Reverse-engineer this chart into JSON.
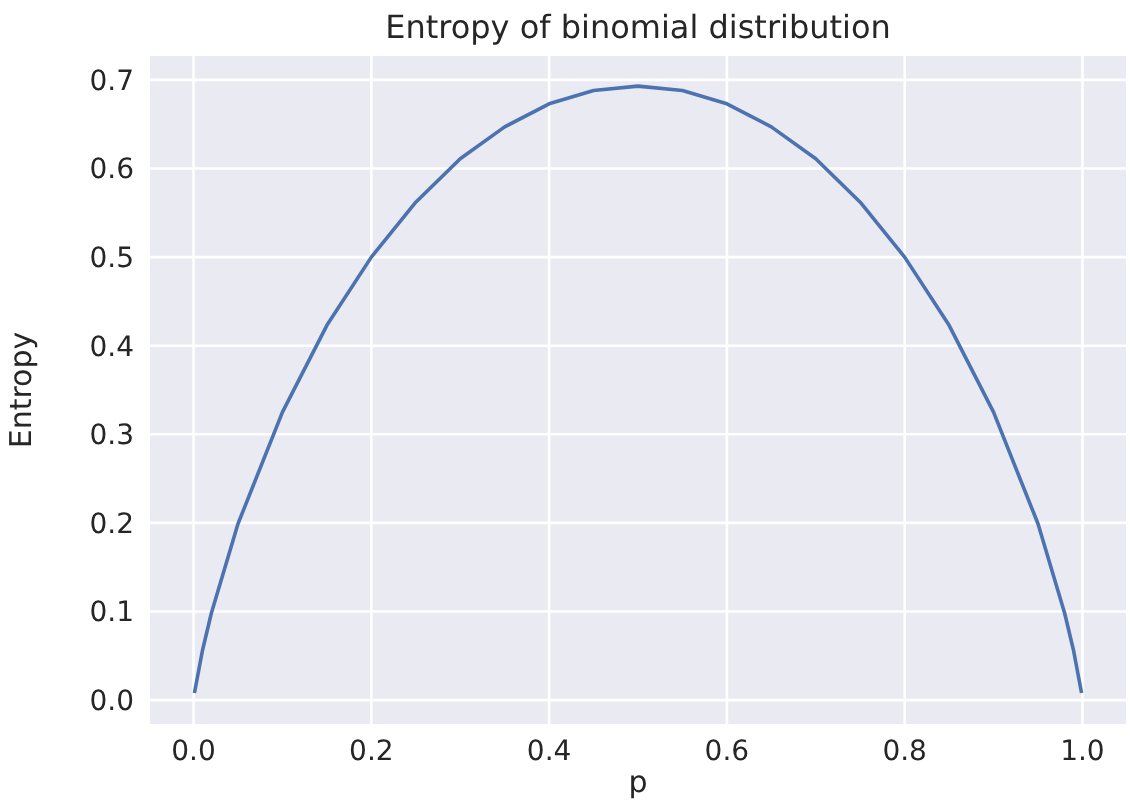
{
  "chart_data": {
    "type": "line",
    "title": "Entropy of binomial distribution",
    "xlabel": "p",
    "ylabel": "Entropy",
    "x": [
      0.001,
      0.01,
      0.02,
      0.05,
      0.1,
      0.15,
      0.2,
      0.25,
      0.3,
      0.35,
      0.4,
      0.45,
      0.5,
      0.55,
      0.6,
      0.65,
      0.7,
      0.75,
      0.8,
      0.85,
      0.9,
      0.95,
      0.98,
      0.99,
      0.999
    ],
    "series": [
      {
        "color": "#4c72b0",
        "values": [
          0.008,
          0.056,
          0.098,
          0.199,
          0.325,
          0.423,
          0.5,
          0.562,
          0.611,
          0.647,
          0.673,
          0.688,
          0.693,
          0.688,
          0.673,
          0.647,
          0.611,
          0.562,
          0.5,
          0.423,
          0.325,
          0.199,
          0.098,
          0.056,
          0.008
        ]
      }
    ],
    "xlim": [
      -0.049,
      1.049
    ],
    "xticks": [
      {
        "value": 0,
        "label": "0.0"
      },
      0.2,
      0.4,
      0.6,
      0.8,
      {
        "value": 1,
        "label": "1.0"
      }
    ],
    "ylim": [
      -0.027,
      0.727
    ],
    "yticks": [
      {
        "value": 0,
        "label": "0.0"
      },
      0.1,
      0.2,
      0.3,
      0.4,
      0.5,
      0.6,
      0.7
    ],
    "grid": true,
    "marker": "none",
    "line_style": "solid"
  }
}
